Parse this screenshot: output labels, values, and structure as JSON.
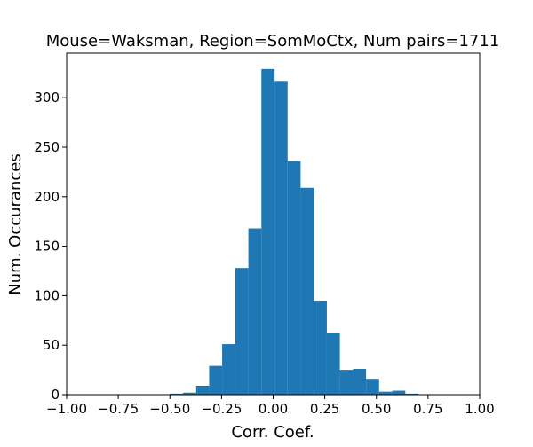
{
  "chart_data": {
    "type": "bar",
    "title": "Mouse=Waksman, Region=SomMoCtx, Num pairs=1711",
    "xlabel": "Corr. Coef.",
    "ylabel": "Num. Occurances",
    "xlim": [
      -1.0,
      1.0
    ],
    "ylim": [
      0,
      345
    ],
    "grid": false,
    "bar_color": "#1f77b4",
    "x_ticks": [
      -1.0,
      -0.75,
      -0.5,
      -0.25,
      0.0,
      0.25,
      0.5,
      0.75,
      1.0
    ],
    "x_tick_labels": [
      "−1.00",
      "−0.75",
      "−0.50",
      "−0.25",
      "0.00",
      "0.25",
      "0.50",
      "0.75",
      "1.00"
    ],
    "y_ticks": [
      0,
      50,
      100,
      150,
      200,
      250,
      300
    ],
    "y_tick_labels": [
      "0",
      "50",
      "100",
      "150",
      "200",
      "250",
      "300"
    ],
    "bin_edges": [
      -0.5,
      -0.437,
      -0.373,
      -0.31,
      -0.247,
      -0.183,
      -0.12,
      -0.057,
      0.007,
      0.07,
      0.133,
      0.197,
      0.26,
      0.323,
      0.387,
      0.45,
      0.513,
      0.577,
      0.64,
      0.703,
      0.767
    ],
    "counts": [
      1,
      2,
      9,
      29,
      51,
      128,
      168,
      329,
      317,
      236,
      209,
      95,
      62,
      25,
      26,
      16,
      3,
      4,
      1,
      0
    ]
  }
}
